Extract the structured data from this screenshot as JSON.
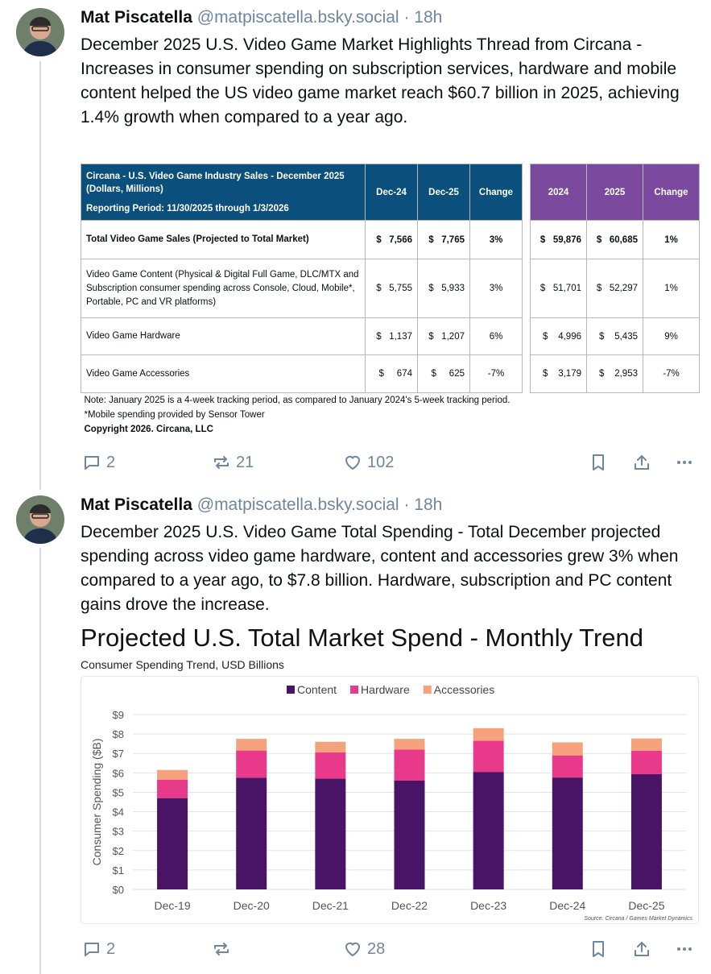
{
  "posts": [
    {
      "author": "Mat Piscatella",
      "handle": "@matpiscatella.bsky.social",
      "time": "· 18h",
      "text": "December 2025 U.S. Video Game Market Highlights Thread from Circana - Increases in consumer spending on subscription services, hardware and mobile content helped the US video game market reach $60.7 billion in 2025, achieving 1.4% growth when compared to a year ago.",
      "table": {
        "title": "Circana - U.S. Video Game Industry Sales - December 2025",
        "unit": "(Dollars, Millions)",
        "period": "Reporting Period: 11/30/2025 through 1/3/2026",
        "columns": [
          "Dec-24",
          "Dec-25",
          "Change",
          "2024",
          "2025",
          "Change"
        ],
        "rows": [
          {
            "label": "Total Video Game Sales (Projected to Total Market)",
            "cells": [
              "$   7,566",
              "$   7,765",
              "3%",
              "$   59,876",
              "$   60,685",
              "1%"
            ]
          },
          {
            "label": "Video Game Content (Physical & Digital Full Game, DLC/MTX and Subscription consumer spending across Console, Cloud, Mobile*, Portable, PC and VR platforms)",
            "cells": [
              "$   5,755",
              "$   5,933",
              "3%",
              "$   51,701",
              "$   52,297",
              "1%"
            ]
          },
          {
            "label": "Video Game Hardware",
            "cells": [
              "$   1,137",
              "$   1,207",
              "6%",
              "$    4,996",
              "$    5,435",
              "9%"
            ]
          },
          {
            "label": "Video Game Accessories",
            "cells": [
              "$     674",
              "$     625",
              "-7%",
              "$    3,179",
              "$    2,953",
              "-7%"
            ]
          }
        ],
        "notes": [
          "Note: January 2025 is a 4-week tracking period, as compared to January 2024's 5-week tracking period.",
          "*Mobile spending provided by Sensor Tower",
          "Copyright 2026. Circana, LLC"
        ]
      },
      "replies": 2,
      "reposts": 21,
      "likes": 102
    },
    {
      "author": "Mat Piscatella",
      "handle": "@matpiscatella.bsky.social",
      "time": "· 18h",
      "text": "December 2025 U.S. Video Game Total Spending - Total December projected spending across video game hardware, content and accessories grew 3% when compared to a year ago, to $7.8 billion. Hardware, subscription and PC content gains drove the increase.",
      "replies": 2,
      "likes": 28
    }
  ],
  "chart_data": {
    "type": "stacked-bar",
    "title": "Projected U.S. Total Market Spend - Monthly Trend",
    "subtitle": "Consumer Spending Trend, USD Billions",
    "y_label": "Consumer Spending ($B)",
    "source": "Source: Circana / Games Market Dynamics",
    "categories": [
      "Dec-19",
      "Dec-20",
      "Dec-21",
      "Dec-22",
      "Dec-23",
      "Dec-24",
      "Dec-25"
    ],
    "series": [
      {
        "name": "Content",
        "color": "#4a1466",
        "values": [
          4.7,
          5.75,
          5.7,
          5.6,
          6.05,
          5.76,
          5.93
        ]
      },
      {
        "name": "Hardware",
        "color": "#e8398a",
        "values": [
          0.95,
          1.4,
          1.35,
          1.6,
          1.6,
          1.14,
          1.21
        ]
      },
      {
        "name": "Accessories",
        "color": "#f5a27d",
        "values": [
          0.5,
          0.6,
          0.55,
          0.55,
          0.65,
          0.67,
          0.63
        ]
      }
    ],
    "ylim": [
      0,
      9
    ],
    "yticks": [
      {
        "value": 0,
        "label": "$0"
      },
      {
        "value": 1,
        "label": "$1"
      },
      {
        "value": 2,
        "label": "$2"
      },
      {
        "value": 3,
        "label": "$3"
      },
      {
        "value": 4,
        "label": "$4"
      },
      {
        "value": 5,
        "label": "$5"
      },
      {
        "value": 6,
        "label": "$6"
      },
      {
        "value": 7,
        "label": "$7"
      },
      {
        "value": 8,
        "label": "$8"
      },
      {
        "value": 9,
        "label": "$9"
      }
    ],
    "grid": true,
    "legend": "top"
  }
}
